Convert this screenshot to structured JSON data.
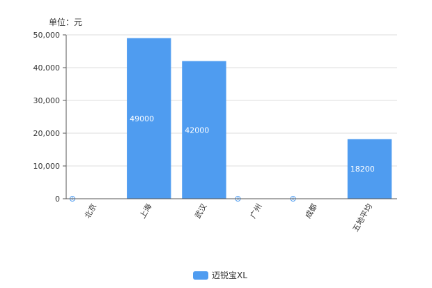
{
  "chart_data": {
    "type": "bar",
    "unit_label": "单位：元",
    "categories": [
      "北京",
      "上海",
      "武汉",
      "广州",
      "成都",
      "五地平均"
    ],
    "series": [
      {
        "name": "迈锐宝XL",
        "values": [
          0,
          49000,
          42000,
          0,
          0,
          18200
        ],
        "data_labels": [
          "0",
          "49000",
          "42000",
          "0",
          "0",
          "18200"
        ],
        "color": "#4f9cf0"
      }
    ],
    "yticks": [
      "0",
      "10,000",
      "20,000",
      "30,000",
      "40,000",
      "50,000"
    ],
    "ylim": [
      0,
      50000
    ],
    "grid": true,
    "legend_position": "bottom"
  }
}
